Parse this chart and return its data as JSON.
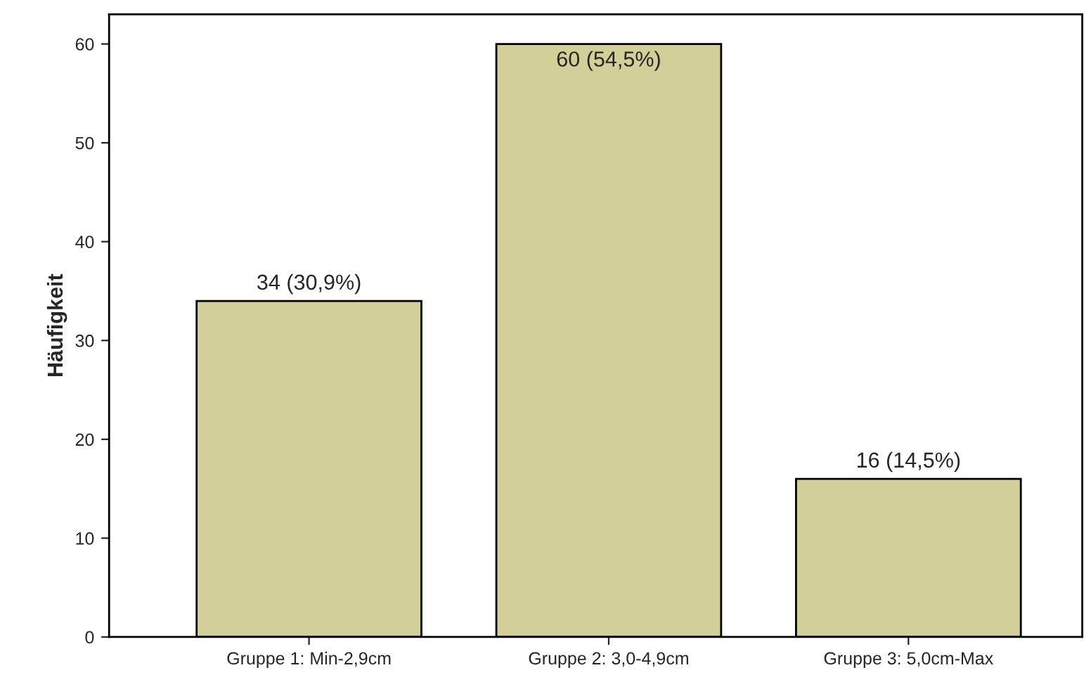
{
  "chart_data": {
    "type": "bar",
    "ylabel": "Häufigkeit",
    "categories": [
      "Gruppe 1: Min-2,9cm",
      "Gruppe 2: 3,0-4,9cm",
      "Gruppe 3: 5,0cm-Max"
    ],
    "values": [
      34,
      60,
      16
    ],
    "value_labels": [
      "34 (30,9%)",
      "60 (54,5%)",
      "16 (14,5%)"
    ],
    "color": "#d3cf99",
    "ylim": [
      0,
      63
    ],
    "yticks": [
      0,
      10,
      20,
      30,
      40,
      50,
      60
    ],
    "grid": false
  }
}
